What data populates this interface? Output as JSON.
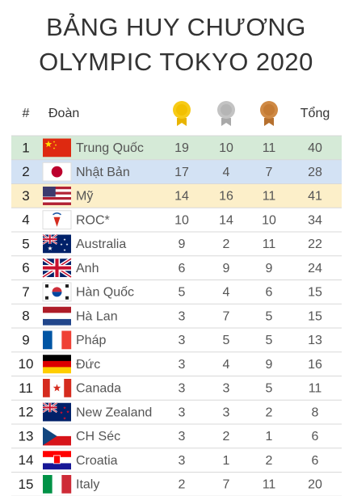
{
  "header": {
    "title_line1": "BẢNG HUY CHƯƠNG",
    "title_line2": "OLYMPIC TOKYO 2020"
  },
  "table": {
    "columns": [
      "#",
      "Đoàn",
      "Tổng"
    ],
    "rows": [
      [
        "1",
        "Trung Quốc",
        "19",
        "10",
        "11",
        "40"
      ],
      [
        "2",
        "Nhật Bản",
        "17",
        "4",
        "7",
        "28"
      ],
      [
        "3",
        "Mỹ",
        "14",
        "16",
        "11",
        "41"
      ],
      [
        "4",
        "ROC*",
        "10",
        "14",
        "10",
        "34"
      ],
      [
        "5",
        "Australia",
        "9",
        "2",
        "11",
        "22"
      ],
      [
        "6",
        "Anh",
        "6",
        "9",
        "9",
        "24"
      ],
      [
        "7",
        "Hàn Quốc",
        "5",
        "4",
        "6",
        "15"
      ],
      [
        "8",
        "Hà Lan",
        "3",
        "7",
        "5",
        "15"
      ],
      [
        "9",
        "Pháp",
        "3",
        "5",
        "5",
        "13"
      ],
      [
        "10",
        "Đức",
        "3",
        "4",
        "9",
        "16"
      ],
      [
        "11",
        "Canada",
        "3",
        "3",
        "5",
        "11"
      ],
      [
        "12",
        "New Zealand",
        "3",
        "3",
        "2",
        "8"
      ],
      [
        "13",
        "CH Séc",
        "3",
        "2",
        "1",
        "6"
      ],
      [
        "14",
        "Croatia",
        "3",
        "1",
        "2",
        "6"
      ],
      [
        "15",
        "Italy",
        "2",
        "7",
        "11",
        "20"
      ]
    ]
  }
}
